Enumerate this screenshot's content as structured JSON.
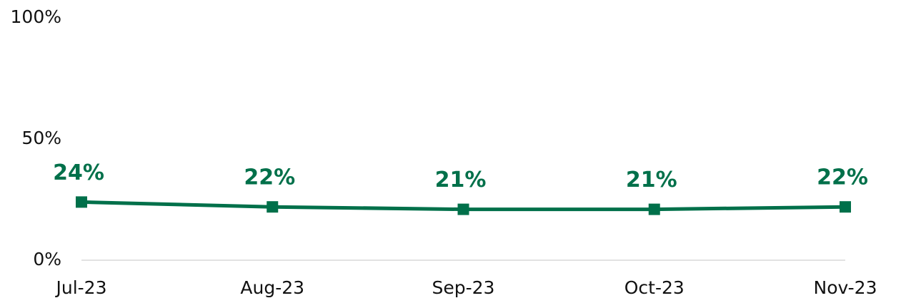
{
  "chart_data": {
    "type": "line",
    "categories": [
      "Jul-23",
      "Aug-23",
      "Sep-23",
      "Oct-23",
      "Nov-23"
    ],
    "values": [
      24,
      22,
      21,
      21,
      22
    ],
    "value_labels": [
      "24%",
      "22%",
      "21%",
      "21%",
      "22%"
    ],
    "color": "#00704a",
    "ylim": [
      0,
      100
    ],
    "yticks": [
      {
        "value": 0,
        "label": "0%"
      },
      {
        "value": 50,
        "label": "50%"
      },
      {
        "value": 100,
        "label": "100%"
      }
    ],
    "grid": false
  }
}
